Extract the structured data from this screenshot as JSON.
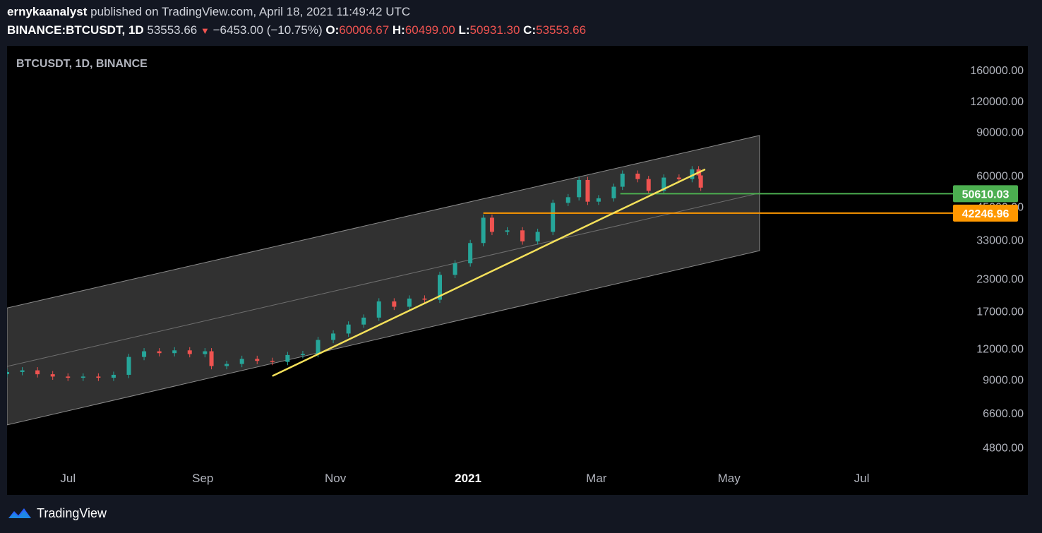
{
  "header": {
    "author": "ernykaanalyst",
    "published": "published on TradingView.com, April 18, 2021 11:49:42 UTC",
    "symbol": "BINANCE:BTCUSDT, 1D",
    "last": "53553.66",
    "change_arrow": "▼",
    "change": "−6453.00 (−10.75%)",
    "o_label": "O:",
    "o_val": "60006.67",
    "h_label": "H:",
    "h_val": "60499.00",
    "l_label": "L:",
    "l_val": "50931.30",
    "c_label": "C:",
    "c_val": "53553.66"
  },
  "footer": {
    "brand": "TradingView",
    "logo_icon": "tradingview-logo-icon"
  },
  "colors": {
    "up": "#26a69a",
    "down": "#ef5350",
    "trendline": "#f5e15a",
    "green_level": "#4caf50",
    "orange_level": "#ff9800",
    "channel_fill": "#3a3a3a"
  },
  "chart_data": {
    "type": "candlestick",
    "title": "BTCUSDT, 1D, BINANCE",
    "y_scale": "log",
    "y_ticks": [
      "160000.00",
      "120000.00",
      "90000.00",
      "60000.00",
      "45000.00",
      "33000.00",
      "23000.00",
      "17000.00",
      "12000.00",
      "9000.00",
      "6600.00",
      "4800.00"
    ],
    "x_ticks": [
      "Jul",
      "Sep",
      "Nov",
      "2021",
      "Mar",
      "May",
      "Jul"
    ],
    "x_tick_dates": [
      "2020-07-01",
      "2020-09-01",
      "2020-11-01",
      "2021-01-01",
      "2021-03-01",
      "2021-05-01",
      "2021-07-01"
    ],
    "x_range": [
      "2020-06-03",
      "2021-08-12"
    ],
    "y_range": [
      3900,
      200000
    ],
    "price_labels": [
      {
        "value": 50610.03,
        "text": "50610.03",
        "color": "#4caf50"
      },
      {
        "value": 42246.96,
        "text": "42246.96",
        "color": "#ff9800"
      }
    ],
    "horizontal_lines": [
      {
        "name": "support-green",
        "value": 50610.03,
        "from": "2021-03-12"
      },
      {
        "name": "support-orange",
        "value": 42246.96,
        "from": "2021-01-08"
      }
    ],
    "trendline": {
      "points": [
        [
          "2020-10-03",
          9300
        ],
        [
          "2021-04-20",
          63500
        ]
      ]
    },
    "channel": {
      "upper": [
        [
          "2020-06-03",
          17500
        ],
        [
          "2021-05-15",
          87000
        ]
      ],
      "lower": [
        [
          "2020-06-03",
          5900
        ],
        [
          "2021-05-15",
          29800
        ]
      ],
      "midline": true
    },
    "series": [
      {
        "date": "2020-06-03",
        "close": 9650
      },
      {
        "date": "2020-06-10",
        "close": 9800
      },
      {
        "date": "2020-06-17",
        "close": 9450
      },
      {
        "date": "2020-06-24",
        "close": 9250
      },
      {
        "date": "2020-07-01",
        "close": 9150
      },
      {
        "date": "2020-07-08",
        "close": 9250
      },
      {
        "date": "2020-07-15",
        "close": 9150
      },
      {
        "date": "2020-07-22",
        "close": 9400
      },
      {
        "date": "2020-07-29",
        "close": 11100
      },
      {
        "date": "2020-08-05",
        "close": 11700
      },
      {
        "date": "2020-08-12",
        "close": 11500
      },
      {
        "date": "2020-08-19",
        "close": 11800
      },
      {
        "date": "2020-08-26",
        "close": 11400
      },
      {
        "date": "2020-09-02",
        "close": 11700
      },
      {
        "date": "2020-09-05",
        "close": 10200
      },
      {
        "date": "2020-09-12",
        "close": 10400
      },
      {
        "date": "2020-09-19",
        "close": 10900
      },
      {
        "date": "2020-09-26",
        "close": 10700
      },
      {
        "date": "2020-10-03",
        "close": 10600
      },
      {
        "date": "2020-10-10",
        "close": 11300
      },
      {
        "date": "2020-10-17",
        "close": 11400
      },
      {
        "date": "2020-10-24",
        "close": 13000
      },
      {
        "date": "2020-10-31",
        "close": 13800
      },
      {
        "date": "2020-11-07",
        "close": 15000
      },
      {
        "date": "2020-11-14",
        "close": 16000
      },
      {
        "date": "2020-11-21",
        "close": 18600
      },
      {
        "date": "2020-11-28",
        "close": 17700
      },
      {
        "date": "2020-12-05",
        "close": 19100
      },
      {
        "date": "2020-12-12",
        "close": 18900
      },
      {
        "date": "2020-12-19",
        "close": 23800
      },
      {
        "date": "2020-12-26",
        "close": 26500
      },
      {
        "date": "2021-01-02",
        "close": 32000
      },
      {
        "date": "2021-01-08",
        "close": 40500
      },
      {
        "date": "2021-01-12",
        "close": 35500
      },
      {
        "date": "2021-01-19",
        "close": 36000
      },
      {
        "date": "2021-01-26",
        "close": 32500
      },
      {
        "date": "2021-02-02",
        "close": 35500
      },
      {
        "date": "2021-02-09",
        "close": 46500
      },
      {
        "date": "2021-02-16",
        "close": 49000
      },
      {
        "date": "2021-02-21",
        "close": 57500
      },
      {
        "date": "2021-02-25",
        "close": 47000
      },
      {
        "date": "2021-03-02",
        "close": 48500
      },
      {
        "date": "2021-03-09",
        "close": 54000
      },
      {
        "date": "2021-03-13",
        "close": 61000
      },
      {
        "date": "2021-03-20",
        "close": 58000
      },
      {
        "date": "2021-03-25",
        "close": 52000
      },
      {
        "date": "2021-04-01",
        "close": 58800
      },
      {
        "date": "2021-04-08",
        "close": 58000
      },
      {
        "date": "2021-04-14",
        "close": 63500
      },
      {
        "date": "2021-04-17",
        "close": 60000
      },
      {
        "date": "2021-04-18",
        "close": 53553.66
      }
    ]
  }
}
